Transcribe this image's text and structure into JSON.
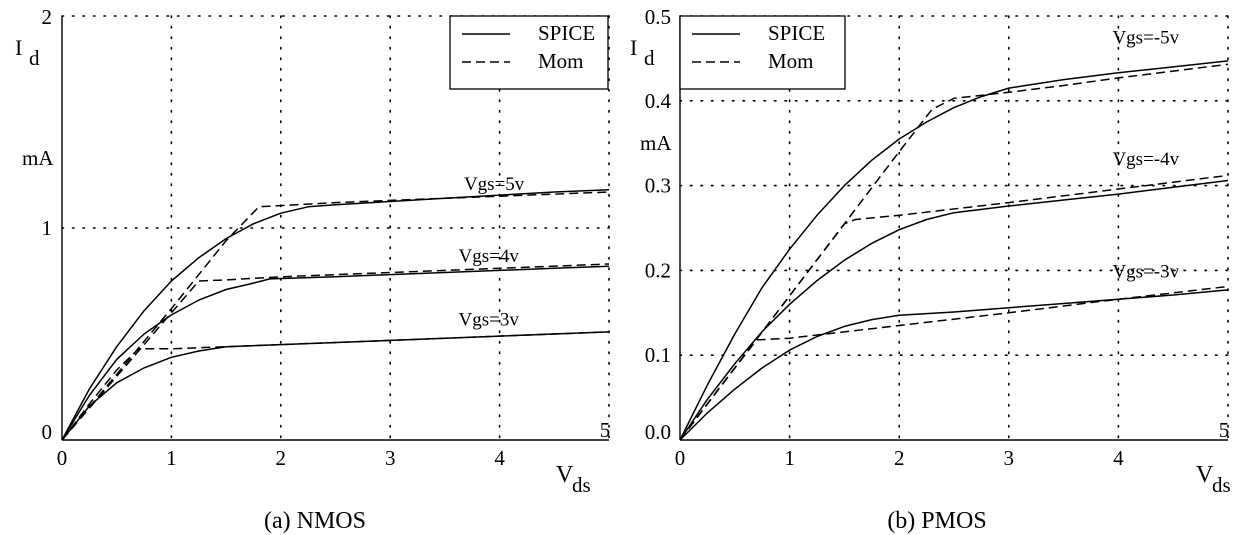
{
  "chart_data": [
    {
      "type": "line",
      "caption": "(a) NMOS",
      "ylabel_main": "I",
      "ylabel_sub": "d",
      "yunit": "mA",
      "xlabel_main": "V",
      "xlabel_sub": "ds",
      "xlim": [
        0,
        5
      ],
      "ylim": [
        0,
        2
      ],
      "xticks": [
        "0",
        "1",
        "2",
        "3",
        "4",
        "5"
      ],
      "yticks": [
        "0",
        "1",
        "2"
      ],
      "grid": true,
      "legend": {
        "position": "top-right",
        "entries": [
          {
            "name": "SPICE",
            "style": "solid"
          },
          {
            "name": "Mom",
            "style": "dashed"
          }
        ]
      },
      "curve_labels": [
        {
          "text": "Vgs=5v",
          "x": 3.95,
          "y": 1.17
        },
        {
          "text": "Vgs=4v",
          "x": 3.9,
          "y": 0.83
        },
        {
          "text": "Vgs=3v",
          "x": 3.9,
          "y": 0.53
        }
      ],
      "series": [
        {
          "style": "solid",
          "x": [
            0,
            0.25,
            0.5,
            0.75,
            1.0,
            1.25,
            1.5,
            1.75,
            2.0,
            2.25,
            2.5,
            3.0,
            3.5,
            4.0,
            4.5,
            5.0
          ],
          "y": [
            0,
            0.24,
            0.44,
            0.61,
            0.75,
            0.86,
            0.95,
            1.02,
            1.07,
            1.1,
            1.11,
            1.125,
            1.14,
            1.155,
            1.17,
            1.18
          ]
        },
        {
          "style": "dashed",
          "x": [
            0,
            0.5,
            1.0,
            1.5,
            1.8,
            2.5,
            3.0,
            3.5,
            4.0,
            4.5,
            5.0
          ],
          "y": [
            0,
            0.31,
            0.62,
            0.94,
            1.1,
            1.12,
            1.13,
            1.14,
            1.15,
            1.16,
            1.17
          ]
        },
        {
          "style": "solid",
          "x": [
            0,
            0.25,
            0.5,
            0.75,
            1.0,
            1.25,
            1.5,
            1.75,
            1.9,
            2.5,
            3.0,
            3.5,
            4.0,
            4.5,
            5.0
          ],
          "y": [
            0,
            0.21,
            0.38,
            0.5,
            0.59,
            0.66,
            0.71,
            0.74,
            0.76,
            0.77,
            0.78,
            0.79,
            0.8,
            0.81,
            0.82
          ]
        },
        {
          "style": "dashed",
          "x": [
            0,
            0.5,
            1.0,
            1.25,
            1.5,
            2.0,
            3.0,
            4.0,
            5.0
          ],
          "y": [
            0,
            0.3,
            0.6,
            0.75,
            0.755,
            0.77,
            0.79,
            0.81,
            0.83
          ]
        },
        {
          "style": "solid",
          "x": [
            0,
            0.25,
            0.5,
            0.75,
            1.0,
            1.25,
            1.5,
            2.0,
            3.0,
            4.0,
            5.0
          ],
          "y": [
            0,
            0.16,
            0.27,
            0.34,
            0.39,
            0.42,
            0.44,
            0.45,
            0.47,
            0.49,
            0.51
          ]
        },
        {
          "style": "dashed",
          "x": [
            0,
            0.25,
            0.5,
            0.7,
            1.0,
            2.0,
            3.0,
            4.0,
            5.0
          ],
          "y": [
            0,
            0.17,
            0.33,
            0.43,
            0.43,
            0.45,
            0.47,
            0.49,
            0.51
          ]
        }
      ]
    },
    {
      "type": "line",
      "caption": "(b) PMOS",
      "ylabel_main": "I",
      "ylabel_sub": "d",
      "yunit": "mA",
      "xlabel_main": "V",
      "xlabel_sub": "ds",
      "xlim": [
        0,
        5
      ],
      "ylim": [
        0,
        0.5
      ],
      "xticks": [
        "0",
        "1",
        "2",
        "3",
        "4",
        "5"
      ],
      "yticks": [
        "0.0",
        "0.1",
        "0.2",
        "0.3",
        "0.4",
        "0.5"
      ],
      "grid": true,
      "legend": {
        "position": "top-left",
        "entries": [
          {
            "name": "SPICE",
            "style": "solid"
          },
          {
            "name": "Mom",
            "style": "dashed"
          }
        ]
      },
      "curve_labels": [
        {
          "text": "Vgs=-5v",
          "x": 4.25,
          "y": 0.465
        },
        {
          "text": "Vgs=-4v",
          "x": 4.25,
          "y": 0.322
        },
        {
          "text": "Vgs=-3v",
          "x": 4.25,
          "y": 0.189
        }
      ],
      "series": [
        {
          "style": "solid",
          "x": [
            0,
            0.25,
            0.5,
            0.75,
            1.0,
            1.25,
            1.5,
            1.75,
            2.0,
            2.25,
            2.5,
            2.75,
            3.0,
            3.5,
            4.0,
            4.5,
            5.0
          ],
          "y": [
            0,
            0.065,
            0.125,
            0.18,
            0.225,
            0.265,
            0.3,
            0.33,
            0.355,
            0.375,
            0.392,
            0.405,
            0.415,
            0.425,
            0.433,
            0.44,
            0.447
          ]
        },
        {
          "style": "dashed",
          "x": [
            0,
            0.5,
            1.0,
            1.5,
            2.0,
            2.3,
            2.5,
            3.0,
            3.5,
            4.0,
            4.5,
            5.0
          ],
          "y": [
            0,
            0.085,
            0.17,
            0.255,
            0.34,
            0.39,
            0.403,
            0.41,
            0.418,
            0.427,
            0.435,
            0.443
          ]
        },
        {
          "style": "solid",
          "x": [
            0,
            0.25,
            0.5,
            0.75,
            1.0,
            1.25,
            1.5,
            1.75,
            2.0,
            2.25,
            2.5,
            3.0,
            3.5,
            4.0,
            4.5,
            5.0
          ],
          "y": [
            0,
            0.048,
            0.09,
            0.128,
            0.16,
            0.188,
            0.212,
            0.232,
            0.248,
            0.26,
            0.268,
            0.276,
            0.283,
            0.29,
            0.298,
            0.306
          ]
        },
        {
          "style": "dashed",
          "x": [
            0,
            0.5,
            1.0,
            1.5,
            1.6,
            2.0,
            3.0,
            4.0,
            5.0
          ],
          "y": [
            0,
            0.085,
            0.17,
            0.255,
            0.26,
            0.265,
            0.28,
            0.296,
            0.312
          ]
        },
        {
          "style": "solid",
          "x": [
            0,
            0.25,
            0.5,
            0.75,
            1.0,
            1.25,
            1.5,
            1.75,
            2.0,
            2.5,
            3.0,
            3.5,
            4.0,
            4.5,
            5.0
          ],
          "y": [
            0,
            0.032,
            0.06,
            0.085,
            0.106,
            0.122,
            0.134,
            0.142,
            0.147,
            0.151,
            0.156,
            0.161,
            0.166,
            0.171,
            0.177
          ]
        },
        {
          "style": "dashed",
          "x": [
            0,
            0.35,
            0.7,
            1.0,
            2.0,
            3.0,
            4.0,
            5.0
          ],
          "y": [
            0,
            0.06,
            0.118,
            0.12,
            0.135,
            0.15,
            0.166,
            0.181
          ]
        }
      ]
    }
  ]
}
